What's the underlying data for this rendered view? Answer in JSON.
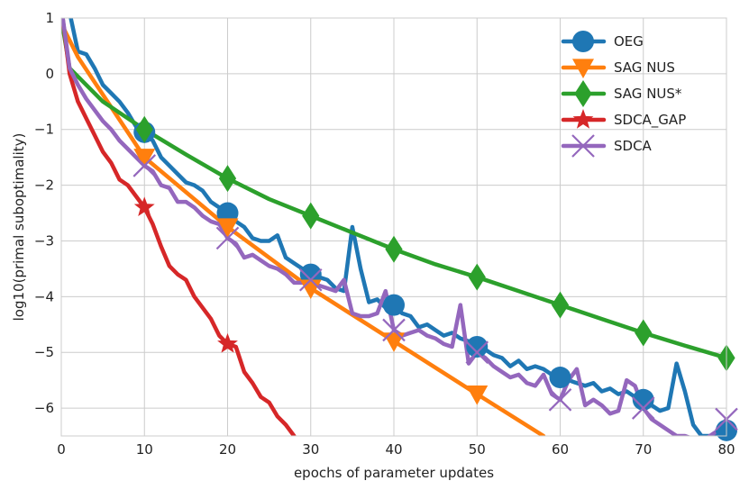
{
  "chart_data": {
    "type": "line",
    "title": "",
    "xlabel": "epochs of parameter updates",
    "ylabel": "log10(primal suboptimality)",
    "xlim": [
      0,
      80
    ],
    "ylim": [
      -6.5,
      1
    ],
    "xticks": [
      0,
      10,
      20,
      30,
      40,
      50,
      60,
      70,
      80
    ],
    "xtick_labels": [
      "0",
      "10",
      "20",
      "30",
      "40",
      "50",
      "60",
      "70",
      "80"
    ],
    "yticks": [
      1,
      0,
      -1,
      -2,
      -3,
      -4,
      -5,
      -6
    ],
    "ytick_labels": [
      "1",
      "0",
      "−1",
      "−2",
      "−3",
      "−4",
      "−5",
      "−6"
    ],
    "grid": true,
    "legend_position": "top-right",
    "series": [
      {
        "name": "OEG",
        "color": "#1f77b4",
        "marker": "circle",
        "marker_x": [
          10,
          20,
          30,
          40,
          50,
          60,
          70,
          80
        ],
        "x": [
          0,
          1,
          2,
          3,
          4,
          5,
          6,
          7,
          8,
          9,
          10,
          11,
          12,
          13,
          14,
          15,
          16,
          17,
          18,
          19,
          20,
          21,
          22,
          23,
          24,
          25,
          26,
          27,
          28,
          29,
          30,
          31,
          32,
          33,
          34,
          35,
          36,
          37,
          38,
          39,
          40,
          41,
          42,
          43,
          44,
          45,
          46,
          47,
          48,
          49,
          50,
          51,
          52,
          53,
          54,
          55,
          56,
          57,
          58,
          59,
          60,
          61,
          62,
          63,
          64,
          65,
          66,
          67,
          68,
          69,
          70,
          71,
          72,
          73,
          74,
          75,
          76,
          77,
          78,
          79,
          80
        ],
        "y": [
          1.3,
          1.1,
          0.4,
          0.35,
          0.1,
          -0.2,
          -0.35,
          -0.5,
          -0.7,
          -0.95,
          -1.05,
          -1.2,
          -1.5,
          -1.65,
          -1.8,
          -1.95,
          -2.0,
          -2.1,
          -2.3,
          -2.4,
          -2.5,
          -2.65,
          -2.75,
          -2.95,
          -3.0,
          -3.0,
          -2.9,
          -3.3,
          -3.4,
          -3.5,
          -3.6,
          -3.65,
          -3.7,
          -3.85,
          -3.9,
          -2.75,
          -3.5,
          -4.1,
          -4.05,
          -4.2,
          -4.15,
          -4.3,
          -4.35,
          -4.55,
          -4.5,
          -4.6,
          -4.7,
          -4.65,
          -4.75,
          -4.8,
          -4.9,
          -4.95,
          -5.05,
          -5.1,
          -5.25,
          -5.15,
          -5.3,
          -5.25,
          -5.3,
          -5.4,
          -5.45,
          -5.5,
          -5.55,
          -5.6,
          -5.55,
          -5.7,
          -5.65,
          -5.75,
          -5.7,
          -5.8,
          -5.85,
          -5.95,
          -6.05,
          -6.0,
          -5.2,
          -5.7,
          -6.3,
          -6.5,
          -6.5,
          -6.5,
          -6.4
        ]
      },
      {
        "name": "SAG NUS",
        "color": "#ff7f0e",
        "marker": "triangle-down",
        "marker_x": [
          10,
          20,
          30,
          40,
          50
        ],
        "x": [
          0,
          2,
          10,
          20,
          30,
          40,
          50,
          58
        ],
        "y": [
          0.9,
          0.3,
          -1.5,
          -2.75,
          -3.85,
          -4.8,
          -5.75,
          -6.5
        ]
      },
      {
        "name": "SAG NUS*",
        "color": "#2ca02c",
        "marker": "diamond",
        "marker_x": [
          10,
          20,
          30,
          40,
          50,
          60,
          70,
          80
        ],
        "x": [
          0,
          1,
          5,
          10,
          15,
          20,
          25,
          30,
          35,
          40,
          45,
          50,
          55,
          60,
          65,
          70,
          75,
          80
        ],
        "y": [
          1.0,
          0.1,
          -0.5,
          -1.0,
          -1.45,
          -1.88,
          -2.25,
          -2.55,
          -2.85,
          -3.15,
          -3.42,
          -3.65,
          -3.9,
          -4.15,
          -4.4,
          -4.65,
          -4.88,
          -5.1
        ]
      },
      {
        "name": "SDCA_GAP",
        "color": "#d62728",
        "marker": "star",
        "marker_x": [
          10,
          20
        ],
        "x": [
          0,
          1,
          2,
          3,
          4,
          5,
          6,
          7,
          8,
          9,
          10,
          11,
          12,
          13,
          14,
          15,
          16,
          17,
          18,
          19,
          20,
          21,
          22,
          23,
          24,
          25,
          26,
          27,
          28
        ],
        "y": [
          1.2,
          0.0,
          -0.5,
          -0.8,
          -1.1,
          -1.4,
          -1.6,
          -1.9,
          -2.0,
          -2.2,
          -2.4,
          -2.7,
          -3.1,
          -3.45,
          -3.6,
          -3.7,
          -4.0,
          -4.2,
          -4.4,
          -4.7,
          -4.85,
          -4.9,
          -5.35,
          -5.55,
          -5.8,
          -5.9,
          -6.15,
          -6.3,
          -6.5
        ]
      },
      {
        "name": "SDCA",
        "color": "#9467bd",
        "marker": "x",
        "marker_x": [
          10,
          20,
          30,
          40,
          50,
          60,
          70,
          80
        ],
        "x": [
          0,
          1,
          2,
          3,
          4,
          5,
          6,
          7,
          8,
          9,
          10,
          11,
          12,
          13,
          14,
          15,
          16,
          17,
          18,
          19,
          20,
          21,
          22,
          23,
          24,
          25,
          26,
          27,
          28,
          29,
          30,
          31,
          32,
          33,
          34,
          35,
          36,
          37,
          38,
          39,
          40,
          41,
          42,
          43,
          44,
          45,
          46,
          47,
          48,
          49,
          50,
          51,
          52,
          53,
          54,
          55,
          56,
          57,
          58,
          59,
          60,
          61,
          62,
          63,
          64,
          65,
          66,
          67,
          68,
          69,
          70,
          71,
          72,
          73,
          74,
          75,
          76,
          77,
          78,
          79,
          80
        ],
        "y": [
          1.2,
          0.1,
          -0.2,
          -0.45,
          -0.65,
          -0.85,
          -1.0,
          -1.2,
          -1.35,
          -1.5,
          -1.65,
          -1.75,
          -2.0,
          -2.05,
          -2.3,
          -2.3,
          -2.4,
          -2.55,
          -2.65,
          -2.7,
          -2.95,
          -3.05,
          -3.3,
          -3.25,
          -3.35,
          -3.45,
          -3.5,
          -3.6,
          -3.75,
          -3.75,
          -3.7,
          -3.8,
          -3.85,
          -3.9,
          -3.7,
          -4.3,
          -4.35,
          -4.35,
          -4.3,
          -3.9,
          -4.6,
          -4.7,
          -4.65,
          -4.6,
          -4.7,
          -4.75,
          -4.85,
          -4.9,
          -4.15,
          -5.2,
          -5.0,
          -5.1,
          -5.25,
          -5.35,
          -5.45,
          -5.4,
          -5.55,
          -5.6,
          -5.4,
          -5.75,
          -5.85,
          -5.5,
          -5.3,
          -5.95,
          -5.85,
          -5.95,
          -6.1,
          -6.05,
          -5.5,
          -5.6,
          -6.0,
          -6.2,
          -6.3,
          -6.4,
          -6.5,
          -6.5,
          -6.55,
          -6.6,
          -6.5,
          -6.4,
          -6.2
        ]
      }
    ]
  }
}
